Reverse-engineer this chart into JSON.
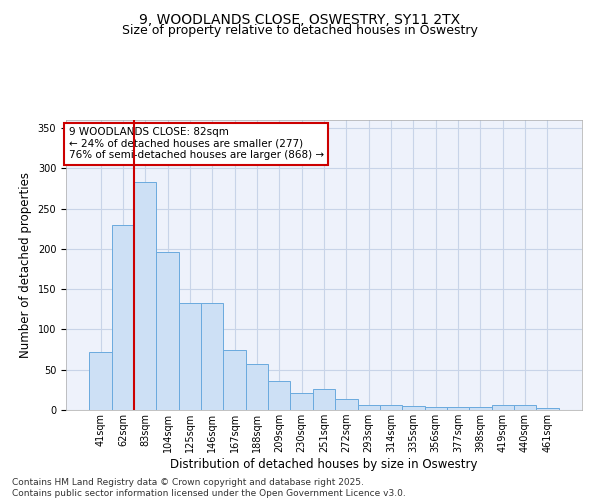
{
  "title": "9, WOODLANDS CLOSE, OSWESTRY, SY11 2TX",
  "subtitle": "Size of property relative to detached houses in Oswestry",
  "xlabel": "Distribution of detached houses by size in Oswestry",
  "ylabel": "Number of detached properties",
  "bar_color": "#cde0f5",
  "bar_edge_color": "#6aaade",
  "bg_color": "#eef2fb",
  "grid_color": "#c8d4e8",
  "categories": [
    "41sqm",
    "62sqm",
    "83sqm",
    "104sqm",
    "125sqm",
    "146sqm",
    "167sqm",
    "188sqm",
    "209sqm",
    "230sqm",
    "251sqm",
    "272sqm",
    "293sqm",
    "314sqm",
    "335sqm",
    "356sqm",
    "377sqm",
    "398sqm",
    "419sqm",
    "440sqm",
    "461sqm"
  ],
  "values": [
    72,
    230,
    283,
    196,
    133,
    133,
    74,
    57,
    36,
    21,
    26,
    14,
    6,
    6,
    5,
    4,
    4,
    4,
    6,
    6,
    2
  ],
  "red_line_x": 2.0,
  "annotation_text": "9 WOODLANDS CLOSE: 82sqm\n← 24% of detached houses are smaller (277)\n76% of semi-detached houses are larger (868) →",
  "annotation_box_color": "#ffffff",
  "annotation_box_edge": "#cc0000",
  "red_line_color": "#cc0000",
  "ylim": [
    0,
    360
  ],
  "yticks": [
    0,
    50,
    100,
    150,
    200,
    250,
    300,
    350
  ],
  "footer": "Contains HM Land Registry data © Crown copyright and database right 2025.\nContains public sector information licensed under the Open Government Licence v3.0.",
  "title_fontsize": 10,
  "subtitle_fontsize": 9,
  "label_fontsize": 8.5,
  "tick_fontsize": 7,
  "footer_fontsize": 6.5,
  "annotation_fontsize": 7.5
}
